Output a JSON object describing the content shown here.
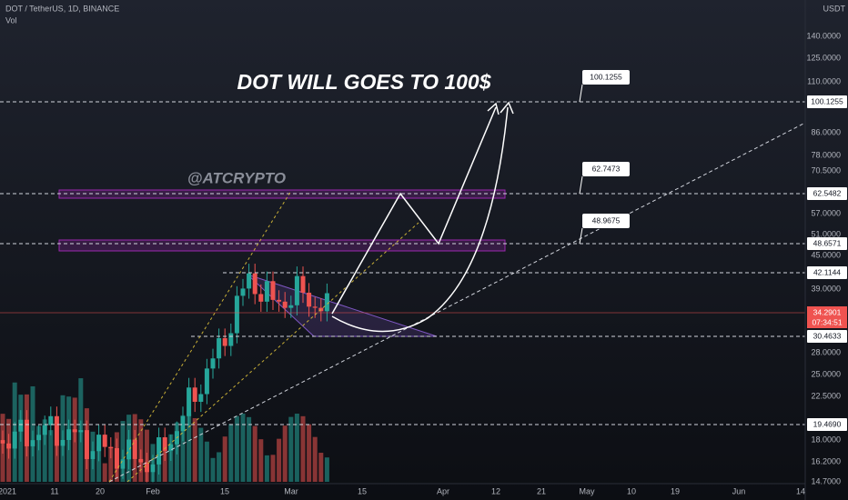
{
  "header": {
    "symbol": "DOT / TetherUS, 1D, BINANCE",
    "volume": "Vol"
  },
  "annotations": {
    "headline": "DOT WILL GOES TO 100$",
    "watermark": "@ATCRYPTO",
    "callouts": [
      "100.1255",
      "62.7473",
      "48.9675"
    ]
  },
  "price_axis": {
    "unit": "USDT",
    "labels": [
      "140.0000",
      "125.0000",
      "110.0000",
      "86.0000",
      "78.0000",
      "70.5000",
      "57.0000",
      "51.0000",
      "45.0000",
      "39.0000",
      "28.0000",
      "25.0000",
      "22.5000",
      "18.0000",
      "16.2000",
      "14.7000"
    ],
    "tags": [
      "100.1255",
      "62.5482",
      "48.6571",
      "42.1144",
      "30.4633",
      "19.4690"
    ],
    "last_price": "34.2901",
    "countdown": "07:34:51"
  },
  "time_axis": {
    "labels": [
      "2021",
      "11",
      "20",
      "Feb",
      "15",
      "Mar",
      "15",
      "Apr",
      "12",
      "21",
      "May",
      "10",
      "19",
      "Jun",
      "14"
    ]
  }
}
